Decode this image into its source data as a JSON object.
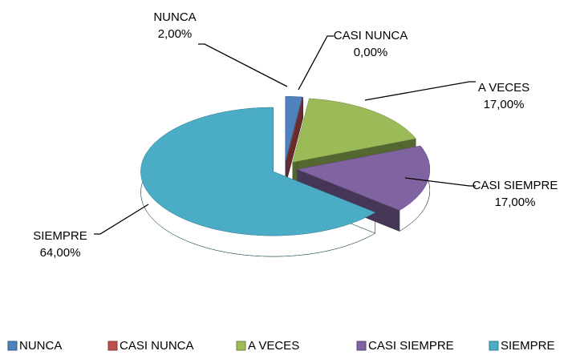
{
  "chart_data": {
    "type": "pie",
    "categories": [
      "NUNCA",
      "CASI NUNCA",
      "A VECES",
      "CASI SIEMPRE",
      "SIEMPRE"
    ],
    "values": [
      2,
      0,
      17,
      17,
      64
    ],
    "value_labels": [
      "2,00%",
      "0,00%",
      "17,00%",
      "17,00%",
      "64,00%"
    ],
    "colors": [
      "#4f81bd",
      "#c0504d",
      "#9bbb59",
      "#8064a2",
      "#4bacc6"
    ],
    "legend": "bottom"
  }
}
